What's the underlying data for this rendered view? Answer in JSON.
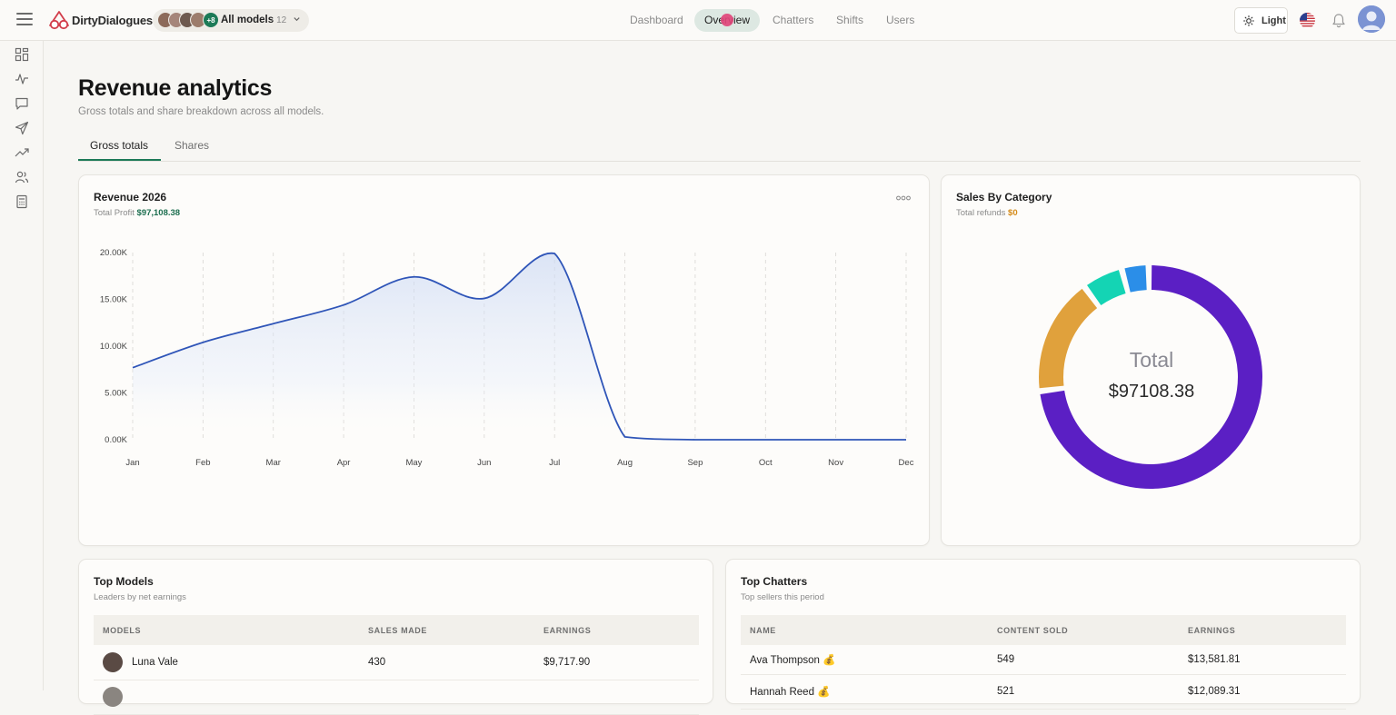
{
  "app": {
    "brand": "DirtyDialogues",
    "model_filter": {
      "label": "All models",
      "count": "· 12",
      "more_badge": "+8"
    },
    "nav": [
      {
        "label": "Dashboard",
        "active": false
      },
      {
        "label": "Overview",
        "active": true
      },
      {
        "label": "Chatters",
        "active": false
      },
      {
        "label": "Shifts",
        "active": false
      },
      {
        "label": "Users",
        "active": false
      }
    ],
    "theme_label": "Light"
  },
  "sidebar": {
    "icons": [
      "dashboard-grid-icon",
      "activity-icon",
      "message-icon",
      "send-icon",
      "trending-up-icon",
      "users-icon",
      "calculator-icon"
    ]
  },
  "page": {
    "title": "Revenue analytics",
    "subtitle": "Gross totals and share breakdown across all models.",
    "tabs": [
      {
        "label": "Gross totals",
        "active": true
      },
      {
        "label": "Shares",
        "active": false
      }
    ]
  },
  "revenue_card": {
    "title": "Revenue 2026",
    "subtitle_label": "Total Profit",
    "subtitle_value": "$97,108.38"
  },
  "category_card": {
    "title": "Sales By Category",
    "subtitle_label": "Total refunds",
    "subtitle_value": "$0",
    "center_label": "Total",
    "center_value": "$97108.38"
  },
  "chart_data": [
    {
      "type": "area",
      "title": "Revenue 2026",
      "categories": [
        "Jan",
        "Feb",
        "Mar",
        "Apr",
        "May",
        "Jun",
        "Jul",
        "Aug",
        "Sep",
        "Oct",
        "Nov",
        "Dec"
      ],
      "values": [
        7700,
        10400,
        12400,
        14400,
        17400,
        15100,
        19900,
        300,
        0,
        0,
        0,
        0
      ],
      "y_ticks": [
        "20.00K",
        "15.00K",
        "10.00K",
        "5.00K",
        "0.00K"
      ],
      "ylim": [
        0,
        20000
      ],
      "grid": "vertical-dashed",
      "line_color": "#2f55b8"
    },
    {
      "type": "pie",
      "style": "donut",
      "slices": [
        {
          "value": 72,
          "color": "#5b1fc4"
        },
        {
          "value": 16,
          "color": "#e0a13c"
        },
        {
          "value": 5,
          "color": "#14d4b4"
        },
        {
          "value": 3,
          "color": "#2b8ee8"
        }
      ]
    }
  ],
  "top_models": {
    "title": "Top Models",
    "subtitle": "Leaders by net earnings",
    "columns": [
      "MODELS",
      "SALES MADE",
      "EARNINGS"
    ],
    "rows": [
      {
        "name": "Luna Vale",
        "sales": "430",
        "earnings": "$9,717.90"
      }
    ]
  },
  "top_chatters": {
    "title": "Top Chatters",
    "subtitle": "Top sellers this period",
    "columns": [
      "NAME",
      "CONTENT SOLD",
      "EARNINGS"
    ],
    "rows": [
      {
        "name": "Ava Thompson 💰",
        "sold": "549",
        "earnings": "$13,581.81"
      },
      {
        "name": "Hannah Reed 💰",
        "sold": "521",
        "earnings": "$12,089.31"
      }
    ]
  }
}
